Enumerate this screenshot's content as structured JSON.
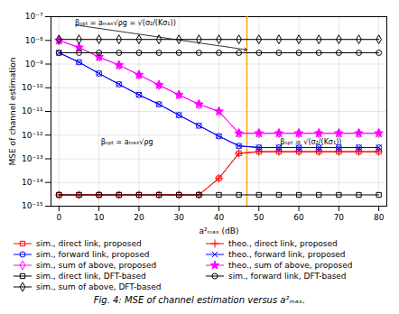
{
  "chart_data": {
    "type": "line",
    "log": "y",
    "caption": "Fig. 4: MSE of channel estimation versus a²ₘₐₓ.",
    "xlabel": "a²ₘₐₓ (dB)",
    "ylabel": "MSE of channel estimation",
    "x": [
      0,
      5,
      10,
      15,
      20,
      25,
      30,
      35,
      40,
      45,
      50,
      55,
      60,
      65,
      70,
      75,
      80
    ],
    "xlim": [
      -2,
      82
    ],
    "xticks": [
      0,
      10,
      20,
      30,
      40,
      50,
      60,
      70,
      80
    ],
    "ylim": [
      1e-15,
      1e-07
    ],
    "yticks": [
      {
        "value": 1e-15,
        "label": "10⁻¹⁵"
      },
      {
        "value": 1e-14,
        "label": "10⁻¹⁴"
      },
      {
        "value": 1e-13,
        "label": "10⁻¹³"
      },
      {
        "value": 1e-12,
        "label": "10⁻¹²"
      },
      {
        "value": 1e-11,
        "label": "10⁻¹¹"
      },
      {
        "value": 1e-10,
        "label": "10⁻¹⁰"
      },
      {
        "value": 1e-09,
        "label": "10⁻⁹"
      },
      {
        "value": 1e-08,
        "label": "10⁻⁸"
      },
      {
        "value": 1e-07,
        "label": "10⁻⁷"
      }
    ],
    "grid": true,
    "legend": "bottom",
    "series": [
      {
        "name": "sim., direct link, proposed",
        "color": "red",
        "marker": "square",
        "values": [
          3e-15,
          3e-15,
          3e-15,
          3e-15,
          3e-15,
          3e-15,
          3e-15,
          3e-15,
          1.5e-14,
          1.7e-13,
          2e-13,
          2e-13,
          2e-13,
          2e-13,
          2e-13,
          2e-13,
          2e-13
        ]
      },
      {
        "name": "theo., direct link, proposed",
        "color": "red",
        "marker": "plus",
        "values": [
          3e-15,
          3e-15,
          3e-15,
          3e-15,
          3e-15,
          3e-15,
          3e-15,
          3e-15,
          1.5e-14,
          1.7e-13,
          2e-13,
          2e-13,
          2e-13,
          2e-13,
          2e-13,
          2e-13,
          2e-13
        ]
      },
      {
        "name": "sim., forward link, proposed",
        "color": "blue",
        "marker": "circle",
        "values": [
          3e-09,
          1.2e-09,
          4e-10,
          1.4e-10,
          5e-11,
          2e-11,
          7e-12,
          2.5e-12,
          9e-13,
          3.5e-13,
          3e-13,
          3e-13,
          3e-13,
          3e-13,
          3e-13,
          3e-13,
          3e-13
        ]
      },
      {
        "name": "theo., forward link, proposed",
        "color": "blue",
        "marker": "times",
        "values": [
          3e-09,
          1.2e-09,
          4e-10,
          1.4e-10,
          5e-11,
          2e-11,
          7e-12,
          2.5e-12,
          9e-13,
          3.5e-13,
          3e-13,
          3e-13,
          3e-13,
          3e-13,
          3e-13,
          3e-13,
          3e-13
        ]
      },
      {
        "name": "sim., sum of above, proposed",
        "color": "magenta",
        "marker": "diamond",
        "values": [
          1e-08,
          5e-09,
          2e-09,
          9e-10,
          3.5e-10,
          1.3e-10,
          5e-11,
          2e-11,
          1e-11,
          1.2e-12,
          1.2e-12,
          1.2e-12,
          1.2e-12,
          1.2e-12,
          1.2e-12,
          1.2e-12,
          1.2e-12
        ]
      },
      {
        "name": "theo., sum of above, proposed",
        "color": "magenta",
        "marker": "star",
        "values": [
          1e-08,
          5e-09,
          2e-09,
          9e-10,
          3.5e-10,
          1.3e-10,
          5e-11,
          2e-11,
          1e-11,
          1.2e-12,
          1.2e-12,
          1.2e-12,
          1.2e-12,
          1.2e-12,
          1.2e-12,
          1.2e-12,
          1.2e-12
        ]
      },
      {
        "name": "sim., direct link, DFT-based",
        "color": "black",
        "marker": "square",
        "values": [
          3e-15,
          3e-15,
          3e-15,
          3e-15,
          3e-15,
          3e-15,
          3e-15,
          3e-15,
          3e-15,
          3e-15,
          3e-15,
          3e-15,
          3e-15,
          3e-15,
          3e-15,
          3e-15,
          3e-15
        ]
      },
      {
        "name": "sim., forward link, DFT-based",
        "color": "black",
        "marker": "circle",
        "values": [
          3e-09,
          3e-09,
          3e-09,
          3e-09,
          3e-09,
          3e-09,
          3e-09,
          3e-09,
          3e-09,
          3e-09,
          3e-09,
          3e-09,
          3e-09,
          3e-09,
          3e-09,
          3e-09,
          3e-09
        ]
      },
      {
        "name": "sim., sum of above, DFT-based",
        "color": "black",
        "marker": "diamond",
        "values": [
          1.1e-08,
          1.1e-08,
          1.1e-08,
          1.1e-08,
          1.1e-08,
          1.1e-08,
          1.1e-08,
          1.1e-08,
          1.1e-08,
          1.1e-08,
          1.1e-08,
          1.1e-08,
          1.1e-08,
          1.1e-08,
          1.1e-08,
          1.1e-08,
          1.1e-08
        ]
      }
    ],
    "vline": {
      "x": 47,
      "color": "#FFA500"
    },
    "annotations": [
      {
        "text": "βₒₚₜ = aₘₐₓ√ρg = √(σ₂/(Kσ₁))",
        "x": 4,
        "y": 4.5e-08,
        "arrow_x": 47,
        "arrow_y": 4e-09
      },
      {
        "text": "βₒₚₜ = aₘₐₓ√ρg",
        "x": 17,
        "y": 5e-13
      },
      {
        "text": "βₒₚₜ = √(σ₂/(Kσ₁))",
        "x": 63,
        "y": 5e-13
      }
    ]
  }
}
